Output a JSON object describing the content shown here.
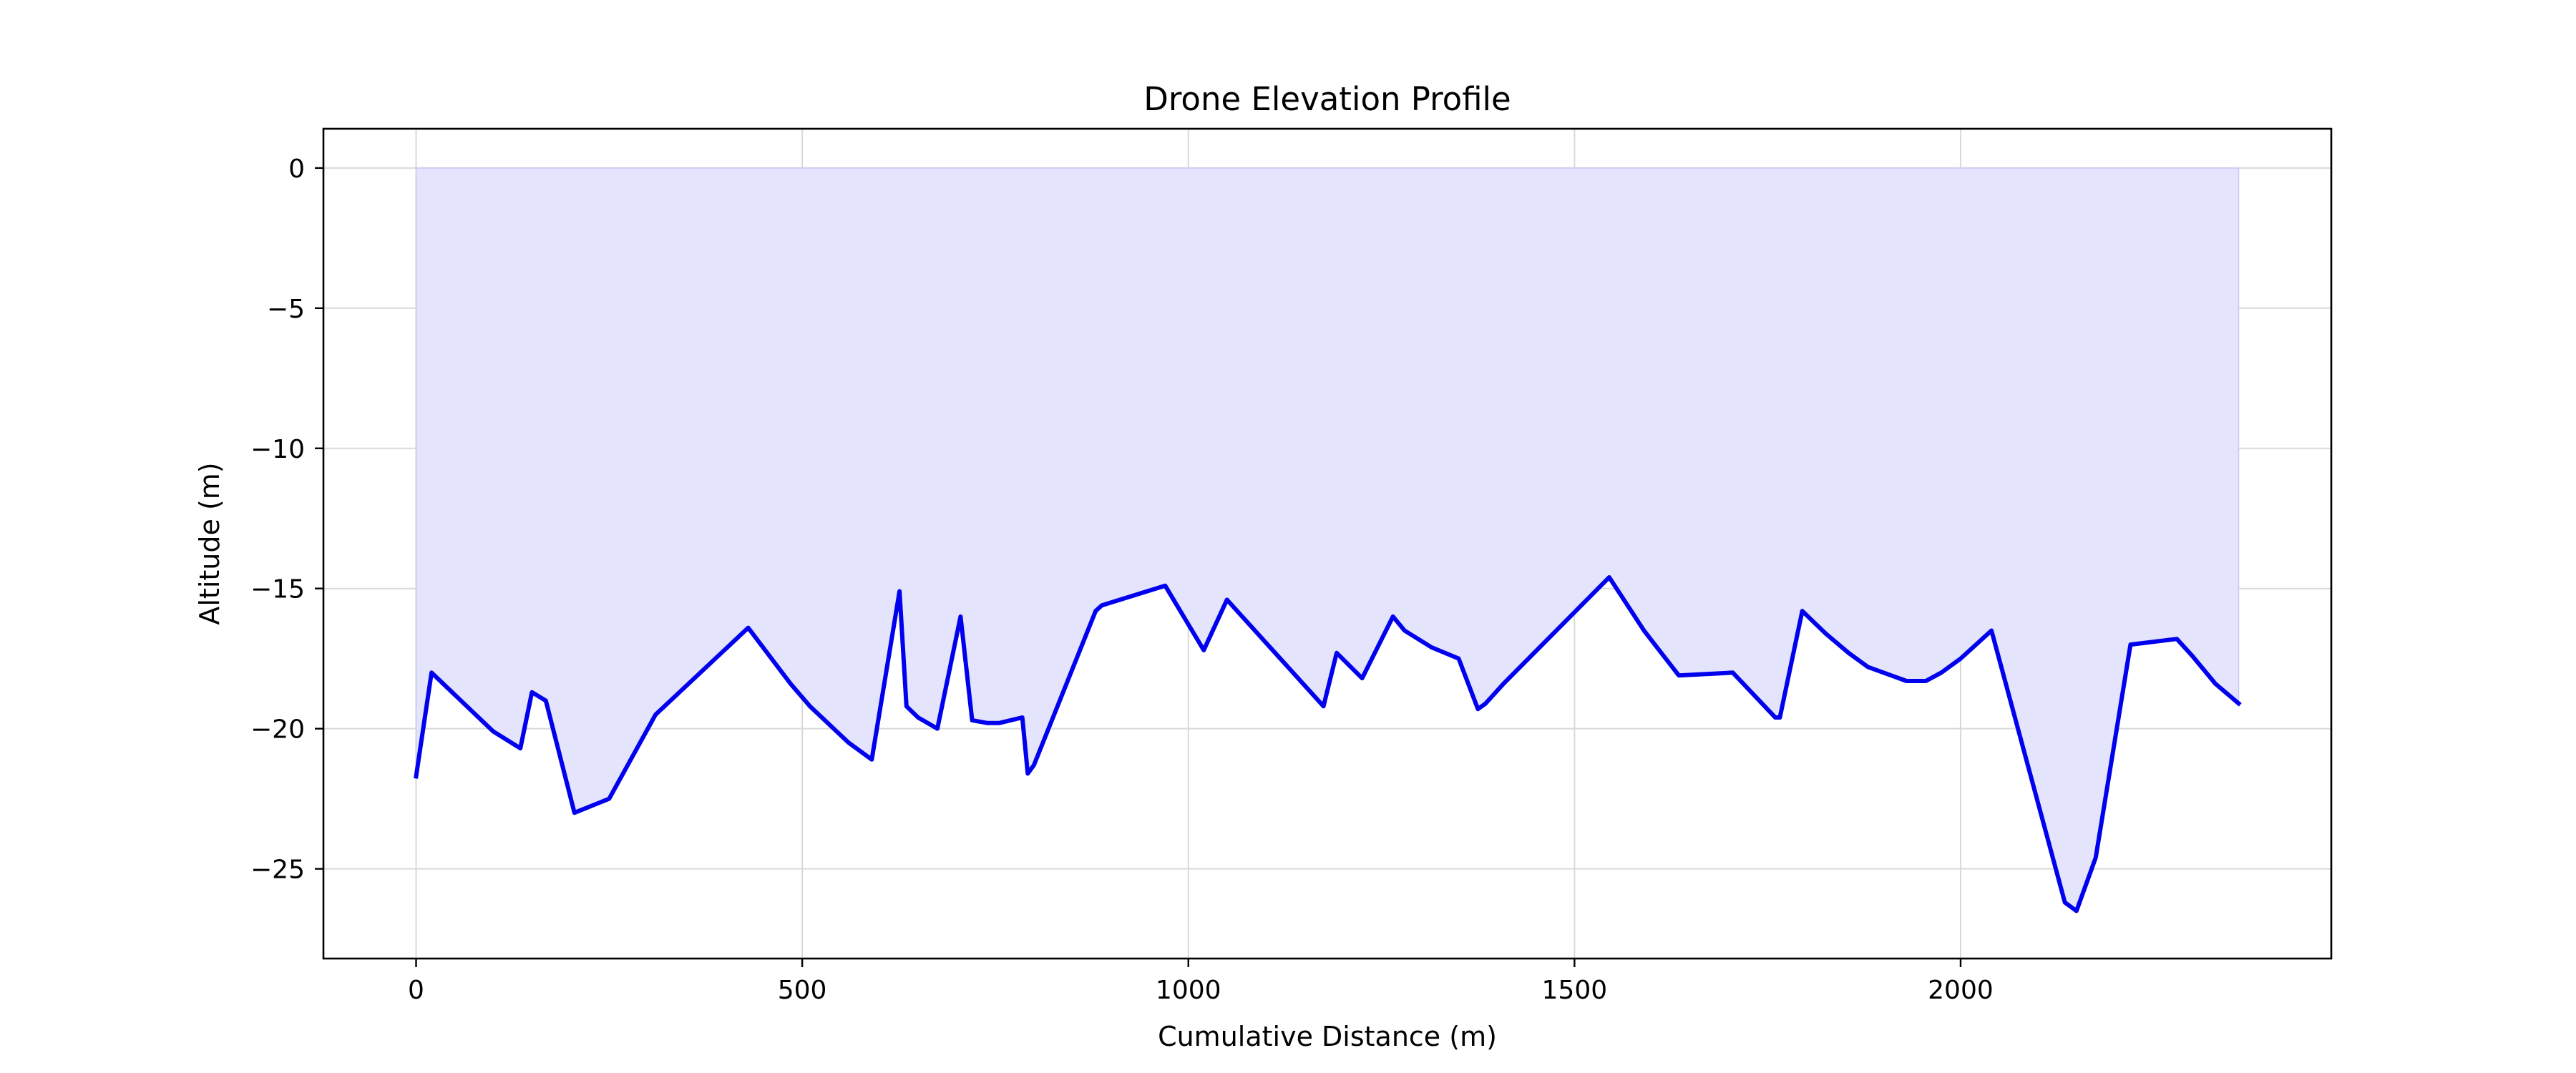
{
  "chart_data": {
    "type": "area",
    "title": "Drone Elevation Profile",
    "xlabel": "Cumulative Distance (m)",
    "ylabel": "Altitude (m)",
    "xlim": [
      -120,
      2480
    ],
    "ylim": [
      -28.2,
      1.4
    ],
    "xticks": [
      0,
      500,
      1000,
      1500,
      2000
    ],
    "xtick_labels": [
      "0",
      "500",
      "1000",
      "1500",
      "2000"
    ],
    "yticks": [
      0,
      -5,
      -10,
      -15,
      -20,
      -25
    ],
    "ytick_labels": [
      "0",
      "−5",
      "−10",
      "−15",
      "−20",
      "−25"
    ],
    "grid": true,
    "fill_baseline": 0,
    "series": [
      {
        "color": "#0000ee",
        "fill_color": "#e4e4fd",
        "x": [
          0,
          20,
          100,
          135,
          150,
          168,
          205,
          250,
          310,
          430,
          485,
          510,
          560,
          590,
          626,
          635,
          650,
          675,
          705,
          720,
          740,
          755,
          785,
          792,
          800,
          880,
          888,
          970,
          1020,
          1050,
          1175,
          1192,
          1225,
          1265,
          1280,
          1315,
          1350,
          1375,
          1385,
          1408,
          1545,
          1590,
          1635,
          1705,
          1760,
          1766,
          1795,
          1825,
          1855,
          1880,
          1910,
          1930,
          1955,
          1975,
          2000,
          2040,
          2135,
          2150,
          2175,
          2220,
          2280,
          2300,
          2330,
          2360
        ],
        "y": [
          -21.7,
          -18.0,
          -20.1,
          -20.7,
          -18.7,
          -19.0,
          -23.0,
          -22.5,
          -19.5,
          -16.4,
          -18.4,
          -19.2,
          -20.5,
          -21.1,
          -15.1,
          -19.2,
          -19.6,
          -20.0,
          -16.0,
          -19.7,
          -19.8,
          -19.8,
          -19.6,
          -21.6,
          -21.3,
          -15.8,
          -15.6,
          -14.9,
          -17.2,
          -15.4,
          -19.2,
          -17.3,
          -18.2,
          -16.0,
          -16.5,
          -17.1,
          -17.5,
          -19.3,
          -19.1,
          -18.4,
          -14.6,
          -16.5,
          -18.1,
          -18.0,
          -19.6,
          -19.6,
          -15.8,
          -16.6,
          -17.3,
          -17.8,
          -18.1,
          -18.3,
          -18.3,
          -18.0,
          -17.5,
          -16.5,
          -26.2,
          -26.5,
          -24.6,
          -17.0,
          -16.8,
          -17.4,
          -18.4,
          -19.1
        ]
      }
    ]
  }
}
